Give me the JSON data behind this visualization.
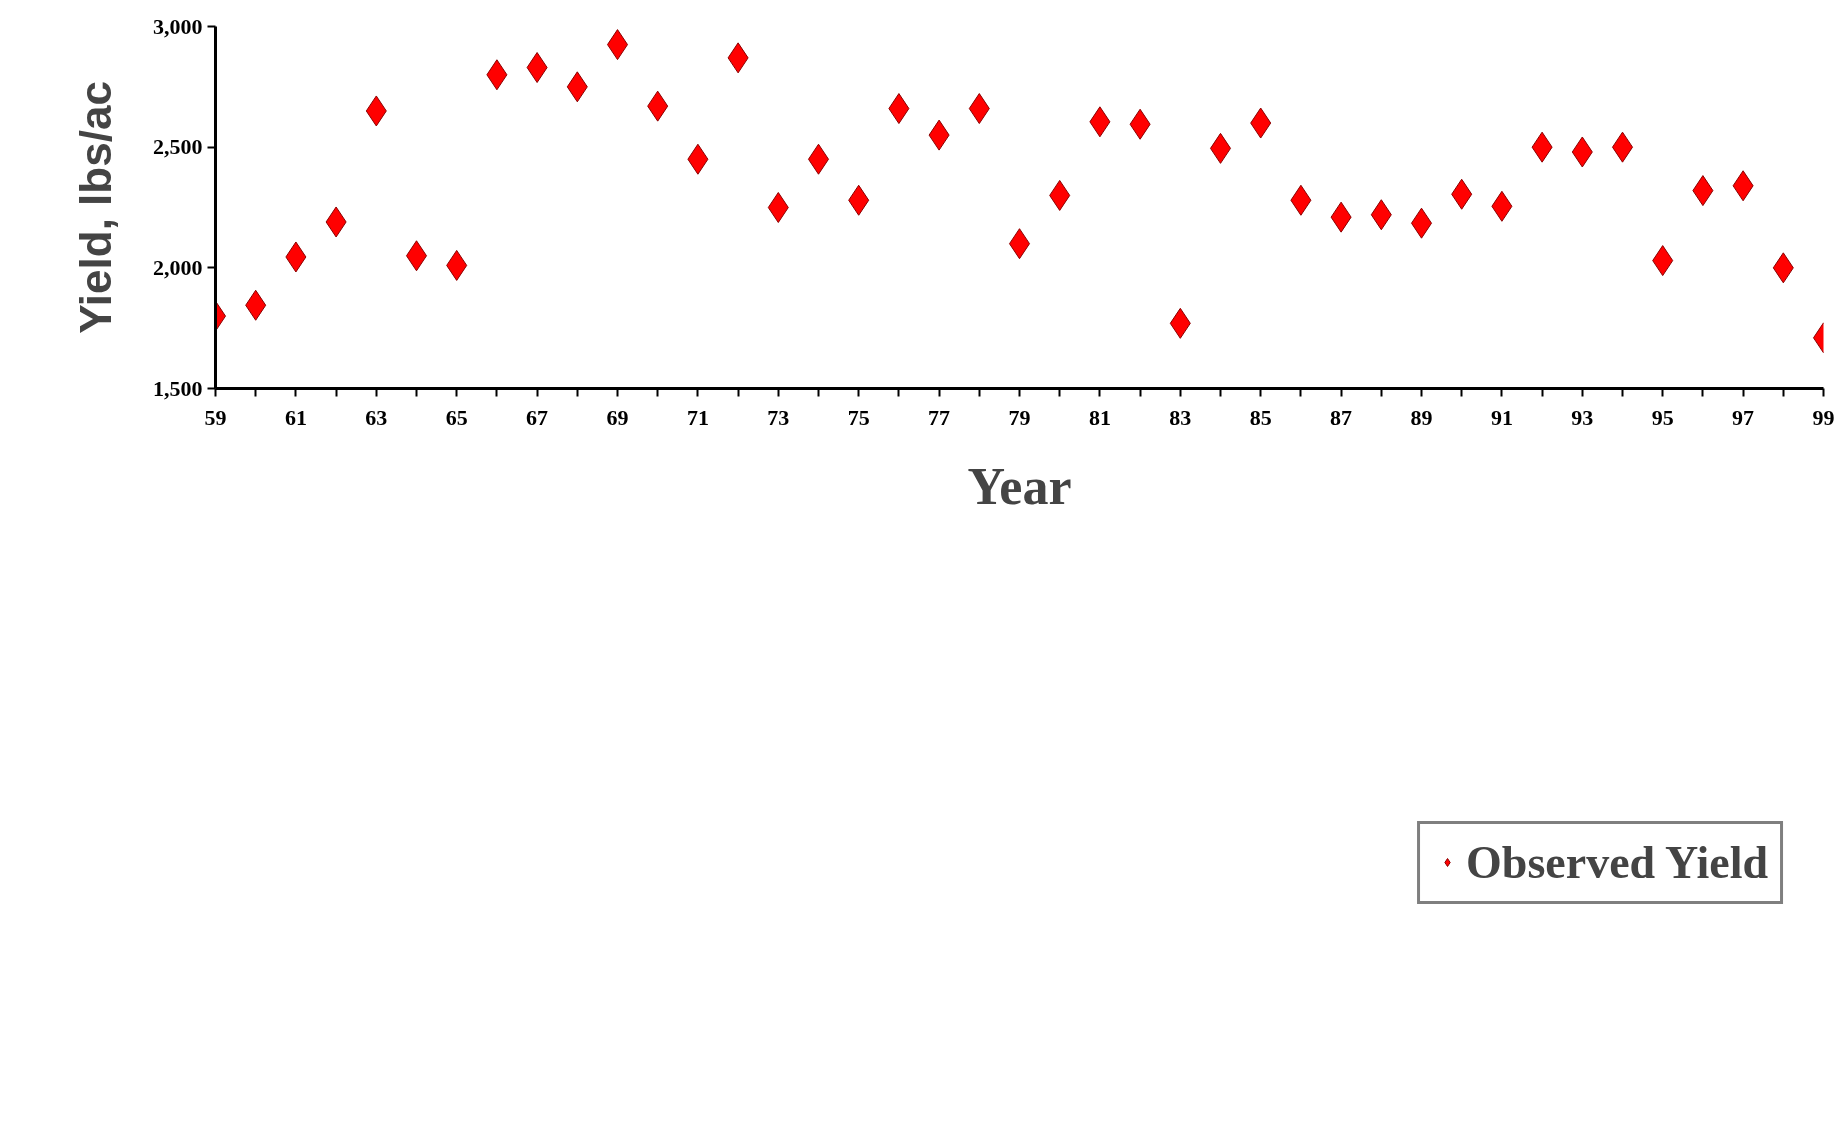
{
  "chart_data": {
    "type": "scatter",
    "xlabel": "Year",
    "ylabel": "Yield, lbs/ac",
    "x": [
      59,
      60,
      61,
      62,
      63,
      64,
      65,
      66,
      67,
      68,
      69,
      70,
      71,
      72,
      73,
      74,
      75,
      76,
      77,
      78,
      79,
      80,
      81,
      82,
      83,
      84,
      85,
      86,
      87,
      88,
      89,
      90,
      91,
      92,
      93,
      94,
      95,
      96,
      97,
      98,
      99
    ],
    "series": [
      {
        "name": "Observed Yield",
        "color": "#ff0000",
        "values": [
          1800,
          1845,
          2045,
          2190,
          2650,
          2050,
          2010,
          2800,
          2830,
          2750,
          2925,
          2670,
          2450,
          2870,
          2250,
          2450,
          2280,
          2660,
          2550,
          2660,
          2100,
          2300,
          2605,
          2595,
          1770,
          2495,
          2600,
          2280,
          2210,
          2220,
          2185,
          2305,
          2255,
          2500,
          2480,
          2500,
          2030,
          2320,
          2340,
          2000,
          1710
        ]
      }
    ],
    "xlim": [
      59,
      99
    ],
    "ylim": [
      1500,
      3000
    ],
    "xticks": [
      59,
      {
        "value": 60,
        "label": null
      },
      61,
      {
        "value": 62,
        "label": null
      },
      63,
      {
        "value": 64,
        "label": null
      },
      65,
      {
        "value": 66,
        "label": null
      },
      67,
      {
        "value": 68,
        "label": null
      },
      69,
      {
        "value": 70,
        "label": null
      },
      71,
      {
        "value": 72,
        "label": null
      },
      73,
      {
        "value": 74,
        "label": null
      },
      75,
      {
        "value": 76,
        "label": null
      },
      77,
      {
        "value": 78,
        "label": null
      },
      79,
      {
        "value": 80,
        "label": null
      },
      81,
      {
        "value": 82,
        "label": null
      },
      83,
      {
        "value": 84,
        "label": null
      },
      85,
      {
        "value": 86,
        "label": null
      },
      87,
      {
        "value": 88,
        "label": null
      },
      89,
      {
        "value": 90,
        "label": null
      },
      91,
      {
        "value": 92,
        "label": null
      },
      93,
      {
        "value": 94,
        "label": null
      },
      95,
      {
        "value": 96,
        "label": null
      },
      97,
      {
        "value": 98,
        "label": null
      },
      99
    ],
    "yticks": [
      {
        "value": 1500,
        "label": "1,500"
      },
      {
        "value": 2000,
        "label": "2,000"
      },
      {
        "value": 2500,
        "label": "2,500"
      },
      {
        "value": 3000,
        "label": "3,000"
      }
    ],
    "grid": false,
    "legend": "bottom",
    "marker": "diamond"
  }
}
